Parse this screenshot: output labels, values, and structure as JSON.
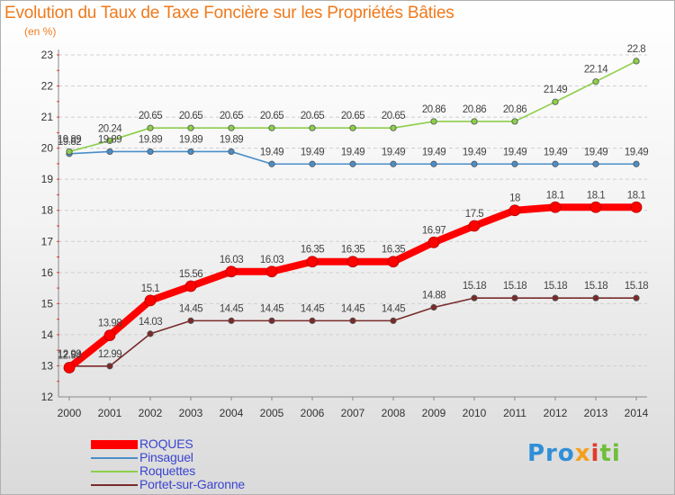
{
  "title": "Evolution du Taux de Taxe Foncière sur les Propriétés Bâties",
  "subtitle": "(en %)",
  "logo": {
    "parts": [
      "Pro",
      "x",
      "i",
      "ti"
    ]
  },
  "chart_data": {
    "type": "line",
    "title": "Evolution du Taux de Taxe Foncière sur les Propriétés Bâties",
    "ylabel": "(en %)",
    "xlabel": "",
    "x": [
      "2000",
      "2001",
      "2002",
      "2003",
      "2004",
      "2005",
      "2006",
      "2007",
      "2008",
      "2009",
      "2010",
      "2011",
      "2012",
      "2013",
      "2014"
    ],
    "ylim": [
      12,
      23
    ],
    "yticks": [
      "12",
      "13",
      "14",
      "15",
      "16",
      "17",
      "18",
      "19",
      "20",
      "21",
      "22",
      "23"
    ],
    "grid": "horizontal dashed",
    "legend_position": "bottom-left",
    "series": [
      {
        "name": "ROQUES",
        "color": "#ff0000",
        "style": "thick",
        "values": [
          12.94,
          13.98,
          15.1,
          15.56,
          16.03,
          16.03,
          16.35,
          16.35,
          16.35,
          16.97,
          17.5,
          18,
          18.1,
          18.1,
          18.1
        ],
        "labels": [
          "12.94",
          "13.98",
          "15.1",
          "15.56",
          "16.03",
          "16.03",
          "16.35",
          "16.35",
          "16.35",
          "16.97",
          "17.5",
          "18",
          "18.1",
          "18.1",
          "18.1"
        ]
      },
      {
        "name": "Pinsaguel",
        "color": "#4a8ec8",
        "style": "thin",
        "values": [
          19.82,
          19.89,
          19.89,
          19.89,
          19.89,
          19.49,
          19.49,
          19.49,
          19.49,
          19.49,
          19.49,
          19.49,
          19.49,
          19.49,
          19.49
        ],
        "labels": [
          "19.82",
          "19.89",
          "19.89",
          "19.89",
          "19.89",
          "19.49",
          "19.49",
          "19.49",
          "19.49",
          "19.49",
          "19.49",
          "19.49",
          "19.49",
          "19.49",
          "19.49"
        ]
      },
      {
        "name": "Roquettes",
        "color": "#8ccf4a",
        "style": "thin",
        "values": [
          19.89,
          20.24,
          20.65,
          20.65,
          20.65,
          20.65,
          20.65,
          20.65,
          20.65,
          20.86,
          20.86,
          20.86,
          21.49,
          22.14,
          22.8
        ],
        "labels": [
          "19.89",
          "20.24",
          "20.65",
          "20.65",
          "20.65",
          "20.65",
          "20.65",
          "20.65",
          "20.65",
          "20.86",
          "20.86",
          "20.86",
          "21.49",
          "22.14",
          "22.8"
        ]
      },
      {
        "name": "Portet-sur-Garonne",
        "color": "#7a2a2a",
        "style": "thin",
        "values": [
          12.99,
          12.99,
          14.03,
          14.45,
          14.45,
          14.45,
          14.45,
          14.45,
          14.45,
          14.88,
          15.18,
          15.18,
          15.18,
          15.18,
          15.18
        ],
        "labels": [
          "12.99",
          "12.99",
          "14.03",
          "14.45",
          "14.45",
          "14.45",
          "14.45",
          "14.45",
          "14.45",
          "14.88",
          "15.18",
          "15.18",
          "15.18",
          "15.18",
          "15.18"
        ]
      }
    ]
  }
}
